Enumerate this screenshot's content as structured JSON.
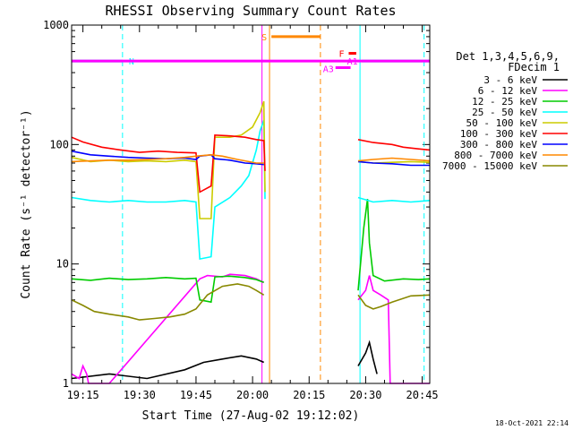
{
  "chart_data": {
    "type": "line",
    "title": "RHESSI Observing Summary Count Rates",
    "xlabel": "Start Time (27-Aug-02 19:12:02)",
    "ylabel": "Count Rate (s⁻¹ detector⁻¹)",
    "yscale": "log",
    "ylim": [
      1,
      1000
    ],
    "xlim_min": [
      0,
      95
    ],
    "x_ticks": [
      {
        "min": 3,
        "label": "19:15"
      },
      {
        "min": 18,
        "label": "19:30"
      },
      {
        "min": 33,
        "label": "19:45"
      },
      {
        "min": 48,
        "label": "20:00"
      },
      {
        "min": 63,
        "label": "20:15"
      },
      {
        "min": 78,
        "label": "20:30"
      },
      {
        "min": 93,
        "label": "20:45"
      }
    ],
    "y_ticks": [
      {
        "value": 1,
        "label": "1"
      },
      {
        "value": 10,
        "label": "10"
      },
      {
        "value": 100,
        "label": "100"
      },
      {
        "value": 1000,
        "label": "1000"
      }
    ],
    "legend_header": [
      "Det 1,3,4,5,6,9,",
      "FDecim 1"
    ],
    "series": [
      {
        "name": "3 - 6 keV",
        "color": "#000000",
        "points": [
          [
            0,
            1.1
          ],
          [
            10,
            1.2
          ],
          [
            20,
            1.1
          ],
          [
            30,
            1.3
          ],
          [
            35,
            1.5
          ],
          [
            40,
            1.6
          ],
          [
            45,
            1.7
          ],
          [
            49,
            1.6
          ],
          [
            51,
            1.5
          ],
          [
            51.5,
            null
          ],
          [
            76,
            1.4
          ],
          [
            78,
            1.8
          ],
          [
            79,
            2.2
          ],
          [
            80,
            1.6
          ],
          [
            81,
            1.2
          ],
          [
            81.5,
            null
          ]
        ]
      },
      {
        "name": "6 - 12 keV",
        "color": "#ff00ff",
        "points": [
          [
            0,
            1.2
          ],
          [
            2,
            1.1
          ],
          [
            3,
            1.4
          ],
          [
            4,
            1.2
          ],
          [
            4.5,
            1
          ],
          [
            10,
            1
          ],
          [
            34,
            7.5
          ],
          [
            36,
            8
          ],
          [
            40,
            7.8
          ],
          [
            42,
            8.2
          ],
          [
            46,
            8.0
          ],
          [
            49,
            7.5
          ],
          [
            51,
            7.0
          ],
          [
            51.5,
            null
          ],
          [
            76,
            5.0
          ],
          [
            78,
            6
          ],
          [
            79,
            8
          ],
          [
            80,
            6
          ],
          [
            82,
            5.5
          ],
          [
            84,
            5.0
          ],
          [
            84.5,
            1
          ],
          [
            95,
            1
          ]
        ]
      },
      {
        "name": "12 - 25 keV",
        "color": "#00cc00",
        "points": [
          [
            0,
            7.5
          ],
          [
            5,
            7.3
          ],
          [
            10,
            7.6
          ],
          [
            15,
            7.4
          ],
          [
            20,
            7.5
          ],
          [
            25,
            7.7
          ],
          [
            30,
            7.5
          ],
          [
            33,
            7.6
          ],
          [
            34,
            5.0
          ],
          [
            37,
            4.8
          ],
          [
            38,
            7.8
          ],
          [
            42,
            7.9
          ],
          [
            46,
            7.7
          ],
          [
            49,
            7.4
          ],
          [
            51,
            7.0
          ],
          [
            51.5,
            null
          ],
          [
            76,
            6.0
          ],
          [
            77.5,
            20
          ],
          [
            78.5,
            35
          ],
          [
            79,
            15
          ],
          [
            80,
            8
          ],
          [
            83,
            7.2
          ],
          [
            88,
            7.5
          ],
          [
            92,
            7.4
          ],
          [
            95,
            7.5
          ]
        ]
      },
      {
        "name": "25 - 50 keV",
        "color": "#00ffff",
        "points": [
          [
            0,
            36
          ],
          [
            5,
            34
          ],
          [
            10,
            33
          ],
          [
            15,
            34
          ],
          [
            20,
            33
          ],
          [
            25,
            33
          ],
          [
            30,
            34
          ],
          [
            33,
            33
          ],
          [
            34,
            11
          ],
          [
            37,
            11.5
          ],
          [
            38,
            30
          ],
          [
            42,
            36
          ],
          [
            45,
            45
          ],
          [
            47,
            55
          ],
          [
            49,
            90
          ],
          [
            50,
            130
          ],
          [
            51,
            160
          ],
          [
            51.3,
            35
          ],
          [
            51.5,
            null
          ],
          [
            76,
            36
          ],
          [
            80,
            33
          ],
          [
            85,
            34
          ],
          [
            90,
            33
          ],
          [
            95,
            34
          ]
        ]
      },
      {
        "name": "50 - 100 keV",
        "color": "#cccc00",
        "points": [
          [
            0,
            78
          ],
          [
            5,
            72
          ],
          [
            10,
            74
          ],
          [
            15,
            72
          ],
          [
            20,
            73
          ],
          [
            25,
            72
          ],
          [
            30,
            74
          ],
          [
            33,
            72
          ],
          [
            34,
            24
          ],
          [
            37,
            24
          ],
          [
            38,
            115
          ],
          [
            42,
            115
          ],
          [
            45,
            120
          ],
          [
            48,
            140
          ],
          [
            50,
            185
          ],
          [
            51,
            230
          ],
          [
            51.3,
            40
          ],
          [
            51.5,
            null
          ],
          [
            76,
            72
          ],
          [
            80,
            70
          ],
          [
            85,
            71
          ],
          [
            90,
            72
          ],
          [
            95,
            71
          ]
        ]
      },
      {
        "name": "100 - 300 keV",
        "color": "#ff0000",
        "points": [
          [
            0,
            115
          ],
          [
            3,
            105
          ],
          [
            8,
            95
          ],
          [
            13,
            90
          ],
          [
            18,
            86
          ],
          [
            23,
            88
          ],
          [
            28,
            86
          ],
          [
            33,
            85
          ],
          [
            34,
            40
          ],
          [
            37,
            45
          ],
          [
            38,
            120
          ],
          [
            42,
            118
          ],
          [
            46,
            115
          ],
          [
            49,
            110
          ],
          [
            51,
            108
          ],
          [
            51.3,
            60
          ],
          [
            51.5,
            null
          ],
          [
            76,
            110
          ],
          [
            80,
            104
          ],
          [
            85,
            100
          ],
          [
            88,
            95
          ],
          [
            92,
            92
          ],
          [
            95,
            90
          ]
        ]
      },
      {
        "name": "300 - 800 keV",
        "color": "#0000ff",
        "points": [
          [
            0,
            88
          ],
          [
            5,
            82
          ],
          [
            10,
            80
          ],
          [
            15,
            78
          ],
          [
            20,
            77
          ],
          [
            25,
            76
          ],
          [
            30,
            77
          ],
          [
            33,
            75
          ],
          [
            34,
            80
          ],
          [
            37,
            82
          ],
          [
            38,
            76
          ],
          [
            42,
            74
          ],
          [
            46,
            70
          ],
          [
            49,
            69
          ],
          [
            51,
            68
          ],
          [
            51.5,
            null
          ],
          [
            76,
            72
          ],
          [
            80,
            70
          ],
          [
            85,
            69
          ],
          [
            90,
            67
          ],
          [
            95,
            67
          ]
        ]
      },
      {
        "name": "800 - 7000 keV",
        "color": "#ff8800",
        "points": [
          [
            0,
            72
          ],
          [
            5,
            73
          ],
          [
            10,
            74
          ],
          [
            15,
            74
          ],
          [
            20,
            75
          ],
          [
            25,
            76
          ],
          [
            30,
            78
          ],
          [
            33,
            80
          ],
          [
            37,
            82
          ],
          [
            40,
            80
          ],
          [
            44,
            75
          ],
          [
            47,
            72
          ],
          [
            49,
            70
          ],
          [
            51,
            70
          ],
          [
            51.5,
            null
          ],
          [
            76,
            73
          ],
          [
            80,
            75
          ],
          [
            85,
            77
          ],
          [
            90,
            75
          ],
          [
            95,
            73
          ]
        ]
      },
      {
        "name": "7000 - 15000 keV",
        "color": "#888800",
        "points": [
          [
            0,
            5.0
          ],
          [
            3,
            4.5
          ],
          [
            6,
            4.0
          ],
          [
            10,
            3.8
          ],
          [
            15,
            3.6
          ],
          [
            18,
            3.4
          ],
          [
            22,
            3.5
          ],
          [
            26,
            3.6
          ],
          [
            30,
            3.8
          ],
          [
            33,
            4.2
          ],
          [
            36,
            5.5
          ],
          [
            40,
            6.5
          ],
          [
            44,
            6.8
          ],
          [
            47,
            6.5
          ],
          [
            49,
            6.0
          ],
          [
            51,
            5.5
          ],
          [
            51.5,
            null
          ],
          [
            76,
            5.5
          ],
          [
            78,
            4.5
          ],
          [
            80,
            4.2
          ],
          [
            82,
            4.4
          ],
          [
            85,
            4.8
          ],
          [
            90,
            5.4
          ],
          [
            95,
            5.5
          ]
        ]
      }
    ],
    "annotations": {
      "bars": [
        {
          "label": "N",
          "color": "#00ffff",
          "y": 500,
          "segments": [
            [
              0,
              13.5
            ],
            [
              77,
              95
            ]
          ]
        },
        {
          "label": "S",
          "color": "#ff8800",
          "y": 800,
          "segments": [
            [
              53,
              66
            ]
          ]
        },
        {
          "label": "F",
          "color": "#ff0000",
          "y": 580,
          "segments": [
            [
              73.5,
              75.5
            ]
          ]
        },
        {
          "label": "A1",
          "color": "#ff00ff",
          "y": 500,
          "segments": [
            [
              0,
              95
            ]
          ]
        },
        {
          "label": "A3",
          "color": "#ff00ff",
          "y": 440,
          "segments": [
            [
              70,
              74
            ]
          ]
        }
      ],
      "vlines": [
        {
          "x": 13.5,
          "color": "#00ffff",
          "style": "dashed"
        },
        {
          "x": 76.5,
          "color": "#00ffff",
          "style": "solid"
        },
        {
          "x": 93.5,
          "color": "#00ffff",
          "style": "dashed"
        },
        {
          "x": 52.5,
          "color": "#ff8800",
          "style": "solid"
        },
        {
          "x": 66,
          "color": "#ff8800",
          "style": "dashed"
        },
        {
          "x": 50.5,
          "color": "#ff00ff",
          "style": "solid"
        }
      ]
    },
    "timestamp": "18-Oct-2021 22:14"
  }
}
